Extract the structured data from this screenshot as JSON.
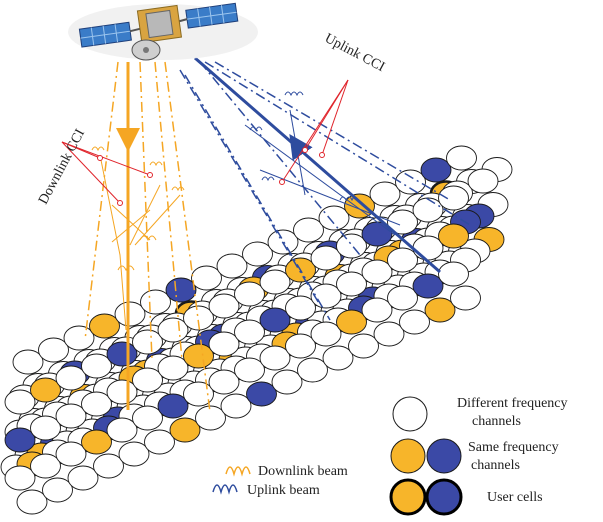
{
  "labels": {
    "downlink_cci": "Downlink CCI",
    "uplink_cci": "Uplink CCI"
  },
  "legend": {
    "different_freq_line1": "Different frequency",
    "different_freq_line2": "channels",
    "same_freq_line1": "Same frequency",
    "same_freq_line2": "channels",
    "user_cells": "User cells",
    "downlink_beam": "Downlink beam",
    "uplink_beam": "Uplink beam"
  },
  "colors": {
    "downlink": "#F5A623",
    "downlink_fill": "#F7B52A",
    "uplink": "#2E4C9E",
    "uplink_fill": "#3B49A6",
    "interference": "#E0242B",
    "cell_stroke": "#1a1a1a"
  },
  "icons": [
    "satellite-icon"
  ]
}
